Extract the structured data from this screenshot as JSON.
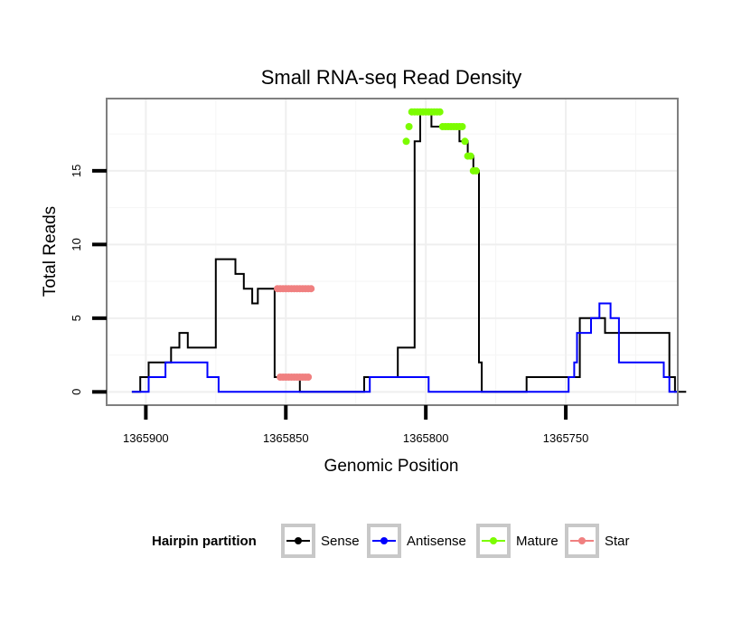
{
  "chart_data": {
    "type": "line",
    "title": "Small RNA-seq Read Density",
    "xlabel": "Genomic Position",
    "ylabel": "Total Reads",
    "xlim": [
      1365914,
      1365710
    ],
    "ylim": [
      -0.9,
      19.9
    ],
    "xticks": [
      1365900,
      1365850,
      1365800,
      1365750
    ],
    "xtick_labels": [
      "1365900",
      "1365850",
      "1365800",
      "1365750"
    ],
    "yticks": [
      0,
      5,
      10,
      15
    ],
    "ytick_labels": [
      "0",
      "5",
      "10",
      "15"
    ],
    "grid": true,
    "legend": {
      "title": "Hairpin partition",
      "position": "bottom",
      "entries": [
        "Sense",
        "Antisense",
        "Mature",
        "Star"
      ]
    },
    "series": [
      {
        "name": "Sense",
        "color": "#000000",
        "style": "line",
        "x": [
          1365905,
          1365902,
          1365902,
          1365899,
          1365899,
          1365891,
          1365891,
          1365888,
          1365888,
          1365885,
          1365885,
          1365875,
          1365875,
          1365868,
          1365868,
          1365865,
          1365865,
          1365862,
          1365862,
          1365860,
          1365860,
          1365858,
          1365858,
          1365856,
          1365856,
          1365854,
          1365854,
          1365848,
          1365848,
          1365845,
          1365845,
          1365840,
          1365840,
          1365822,
          1365822,
          1365810,
          1365810,
          1365804,
          1365804,
          1365802,
          1365802,
          1365800,
          1365800,
          1365798,
          1365798,
          1365792,
          1365792,
          1365788,
          1365788,
          1365785,
          1365785,
          1365783,
          1365783,
          1365781,
          1365781,
          1365780,
          1365780,
          1365775,
          1365775,
          1365764,
          1365764,
          1365750,
          1365750,
          1365745,
          1365745,
          1365739,
          1365739,
          1365736,
          1365736,
          1365730,
          1365730,
          1365713,
          1365713,
          1365711,
          1365711,
          1365707
        ],
        "y": [
          0,
          0,
          1,
          1,
          2,
          2,
          3,
          3,
          4,
          4,
          3,
          3,
          9,
          9,
          8,
          8,
          7,
          7,
          6,
          6,
          7,
          7,
          7,
          7,
          7,
          7,
          1,
          1,
          1,
          1,
          0,
          0,
          0,
          0,
          1,
          1,
          3,
          3,
          17,
          17,
          19,
          19,
          19,
          19,
          18,
          18,
          18,
          18,
          17,
          17,
          16,
          16,
          15,
          15,
          2,
          2,
          0,
          0,
          0,
          0,
          1,
          1,
          1,
          1,
          5,
          5,
          5,
          5,
          4,
          4,
          4,
          4,
          1,
          1,
          0,
          0
        ]
      },
      {
        "name": "Antisense",
        "color": "#0000ff",
        "style": "line",
        "x": [
          1365905,
          1365899,
          1365899,
          1365895,
          1365895,
          1365893,
          1365893,
          1365878,
          1365878,
          1365874,
          1365874,
          1365840,
          1365840,
          1365820,
          1365820,
          1365812,
          1365812,
          1365799,
          1365799,
          1365749,
          1365749,
          1365747,
          1365747,
          1365746,
          1365746,
          1365741,
          1365741,
          1365738,
          1365738,
          1365734,
          1365734,
          1365731,
          1365731,
          1365725,
          1365725,
          1365723,
          1365723,
          1365715,
          1365715,
          1365713,
          1365713,
          1365710
        ],
        "y": [
          0,
          0,
          1,
          1,
          1,
          1,
          2,
          2,
          1,
          1,
          0,
          0,
          0,
          0,
          1,
          1,
          1,
          1,
          0,
          0,
          1,
          1,
          2,
          2,
          4,
          4,
          5,
          5,
          6,
          6,
          5,
          5,
          2,
          2,
          2,
          2,
          2,
          2,
          1,
          1,
          0,
          0
        ]
      },
      {
        "name": "Mature",
        "color": "#7cfc00",
        "style": "points",
        "x": [
          1365807,
          1365806,
          1365805,
          1365804,
          1365803,
          1365802,
          1365801,
          1365800,
          1365799,
          1365798,
          1365797,
          1365796,
          1365795,
          1365794,
          1365793,
          1365792,
          1365791,
          1365790,
          1365789,
          1365788,
          1365787,
          1365786,
          1365785,
          1365784,
          1365783,
          1365782
        ],
        "y": [
          17,
          18,
          19,
          19,
          19,
          19,
          19,
          19,
          19,
          19,
          19,
          19,
          19,
          18,
          18,
          18,
          18,
          18,
          18,
          18,
          18,
          17,
          16,
          16,
          15,
          15
        ]
      },
      {
        "name": "Star",
        "color": "#f08080",
        "style": "points",
        "x": [
          1365853,
          1365852,
          1365851,
          1365850,
          1365849,
          1365848,
          1365847,
          1365846,
          1365845,
          1365844,
          1365843,
          1365842,
          1365841,
          1365852,
          1365851,
          1365850,
          1365849,
          1365848,
          1365847,
          1365846,
          1365845,
          1365844,
          1365843,
          1365842
        ],
        "y": [
          7,
          7,
          7,
          7,
          7,
          7,
          7,
          7,
          7,
          7,
          7,
          7,
          7,
          1,
          1,
          1,
          1,
          1,
          1,
          1,
          1,
          1,
          1,
          1
        ]
      }
    ]
  }
}
